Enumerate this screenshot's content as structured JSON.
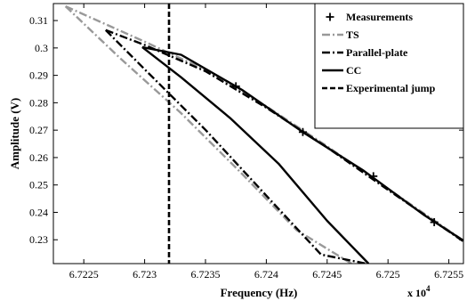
{
  "chart_data": {
    "type": "line",
    "xlabel": "Frequency (Hz)",
    "ylabel": "Amplitude (V)",
    "x_multiplier_base": "x 10",
    "x_multiplier_exp": "4",
    "xlim": [
      67222.5,
      67256.2
    ],
    "ylim": [
      0.2213,
      0.3162
    ],
    "xticks": [
      67225,
      67230,
      67235,
      67240,
      67245,
      67250,
      67255
    ],
    "xtick_labels": [
      "6.7225",
      "6.723",
      "6.7235",
      "6.724",
      "6.7245",
      "6.725",
      "6.7255"
    ],
    "yticks": [
      0.23,
      0.24,
      0.25,
      0.26,
      0.27,
      0.28,
      0.29,
      0.3,
      0.31
    ],
    "ytick_labels": [
      "0.23",
      "0.24",
      "0.25",
      "0.26",
      "0.27",
      "0.28",
      "0.29",
      "0.3",
      "0.31"
    ],
    "grid": false,
    "legend_position": "top-right",
    "series": [
      {
        "name": "Measurements",
        "style": "marker-plus",
        "color": "#000000",
        "x": [
          67237.5,
          67243.0,
          67248.8,
          67253.8
        ],
        "y": [
          0.286,
          0.2693,
          0.2532,
          0.2364
        ]
      },
      {
        "name": "TS",
        "style": "dash-dot",
        "color": "#999999",
        "upper": {
          "x": [
            67223.5,
            67230,
            67235,
            67240,
            67245,
            67250,
            67256.2
          ],
          "y": [
            0.3152,
            0.3023,
            0.292,
            0.2787,
            0.2641,
            0.2486,
            0.2297
          ]
        },
        "lower": {
          "x": [
            67223.5,
            67228,
            67233,
            67238,
            67242.5,
            67247
          ],
          "y": [
            0.3152,
            0.2962,
            0.2762,
            0.2541,
            0.2335,
            0.2213
          ]
        }
      },
      {
        "name": "Parallel-plate",
        "style": "dash-dot",
        "color": "#000000",
        "upper": {
          "x": [
            67226.8,
            67230,
            67235,
            67240,
            67245,
            67250,
            67256.2
          ],
          "y": [
            0.3065,
            0.3011,
            0.2915,
            0.2782,
            0.2637,
            0.2482,
            0.2294
          ]
        },
        "lower": {
          "x": [
            67226.8,
            67230,
            67235,
            67240,
            67244.5,
            67248.2
          ],
          "y": [
            0.3065,
            0.2922,
            0.2701,
            0.2461,
            0.2246,
            0.2213
          ]
        }
      },
      {
        "name": "CC",
        "style": "solid",
        "color": "#000000",
        "upper": {
          "x": [
            67229.8,
            67233,
            67238,
            67243,
            67248,
            67253,
            67256.2
          ],
          "y": [
            0.3003,
            0.2975,
            0.2847,
            0.2693,
            0.2552,
            0.2389,
            0.2297
          ]
        },
        "lower": {
          "x": [
            67229.8,
            67233,
            67237,
            67241,
            67245,
            67248.4
          ],
          "y": [
            0.3003,
            0.2893,
            0.2745,
            0.2578,
            0.2369,
            0.2213
          ]
        }
      },
      {
        "name": "Experimental jump",
        "style": "dashed",
        "color": "#000000",
        "x": [
          67232,
          67232
        ],
        "y": [
          0.3162,
          0.2213
        ]
      }
    ]
  }
}
